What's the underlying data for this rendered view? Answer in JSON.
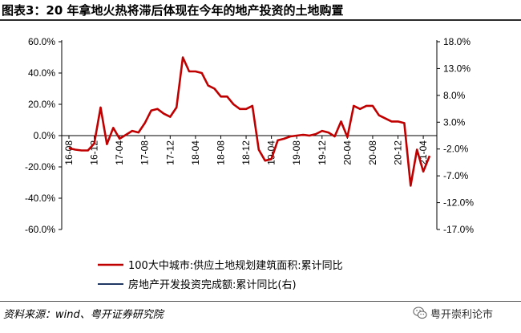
{
  "header": {
    "title": "图表3：20 年拿地火热将滞后体现在今年的地产投资的土地购置"
  },
  "footer": {
    "source": "资料来源：wind、粤开证券研究院",
    "watermark_text": "粤开崇利论市",
    "watermark_icon": "wechat-icon"
  },
  "chart_data": {
    "type": "line",
    "x": [
      "16-08",
      "16-09",
      "16-10",
      "16-11",
      "16-12",
      "17-01",
      "17-02",
      "17-03",
      "17-04",
      "17-05",
      "17-06",
      "17-07",
      "17-08",
      "17-09",
      "17-10",
      "17-11",
      "17-12",
      "18-01",
      "18-02",
      "18-03",
      "18-04",
      "18-05",
      "18-06",
      "18-07",
      "18-08",
      "18-09",
      "18-10",
      "18-11",
      "18-12",
      "19-01",
      "19-02",
      "19-03",
      "19-04",
      "19-05",
      "19-06",
      "19-07",
      "19-08",
      "19-09",
      "19-10",
      "19-11",
      "19-12",
      "20-01",
      "20-02",
      "20-03",
      "20-04",
      "20-05",
      "20-06",
      "20-07",
      "20-08",
      "20-09",
      "20-10",
      "20-11",
      "20-12",
      "21-01",
      "21-02",
      "21-03",
      "21-04",
      "21-05"
    ],
    "xticks": [
      "16-08",
      "16-12",
      "17-04",
      "17-08",
      "17-12",
      "18-04",
      "18-08",
      "18-12",
      "19-04",
      "19-08",
      "19-12",
      "20-04",
      "20-08",
      "20-12",
      "21-04"
    ],
    "y_left": {
      "ticks": [
        "60.0%",
        "40.0%",
        "20.0%",
        "0.0%",
        "-20.0%",
        "-40.0%",
        "-60.0%"
      ],
      "min": -60,
      "max": 60
    },
    "y_right": {
      "ticks": [
        "18.0%",
        "13.0%",
        "8.0%",
        "3.0%",
        "-2.0%",
        "-7.0%",
        "-12.0%",
        "-17.0%"
      ],
      "min": -17,
      "max": 18
    },
    "series": [
      {
        "name": "100大中城市:供应土地规划建筑面积:累计同比",
        "axis": "left",
        "color": "#c00000",
        "values": [
          -8,
          -9,
          -9.5,
          -9.5,
          -5,
          18,
          -5.5,
          5,
          -2,
          0.5,
          3,
          2,
          8,
          16,
          17,
          14,
          12,
          18,
          50,
          41,
          41,
          40,
          32,
          30,
          25,
          25,
          20,
          17,
          17,
          19,
          -9,
          -16,
          -15,
          -3,
          -2,
          -0.5,
          0,
          0.5,
          0,
          1,
          3,
          2,
          -0.5,
          9,
          -1,
          19,
          17,
          19,
          19,
          13,
          11,
          9,
          9,
          8,
          -32,
          -9,
          -23,
          -13
        ]
      },
      {
        "name": "房地产开发投资完成额:累计同比(右)",
        "axis": "right",
        "color": "#1f3864",
        "values": [
          null,
          null,
          null,
          null,
          null,
          null,
          null,
          null,
          null,
          null,
          null,
          null,
          null,
          null,
          null,
          null,
          null,
          null,
          null,
          null,
          null,
          null,
          null,
          null,
          null,
          null,
          null,
          null,
          null,
          null,
          null,
          null,
          null,
          null,
          null,
          null,
          null,
          null,
          null,
          null,
          null,
          null,
          null,
          null,
          null,
          null,
          null,
          null,
          null,
          null,
          null,
          null,
          null,
          null,
          null,
          null,
          null,
          null
        ]
      }
    ]
  }
}
